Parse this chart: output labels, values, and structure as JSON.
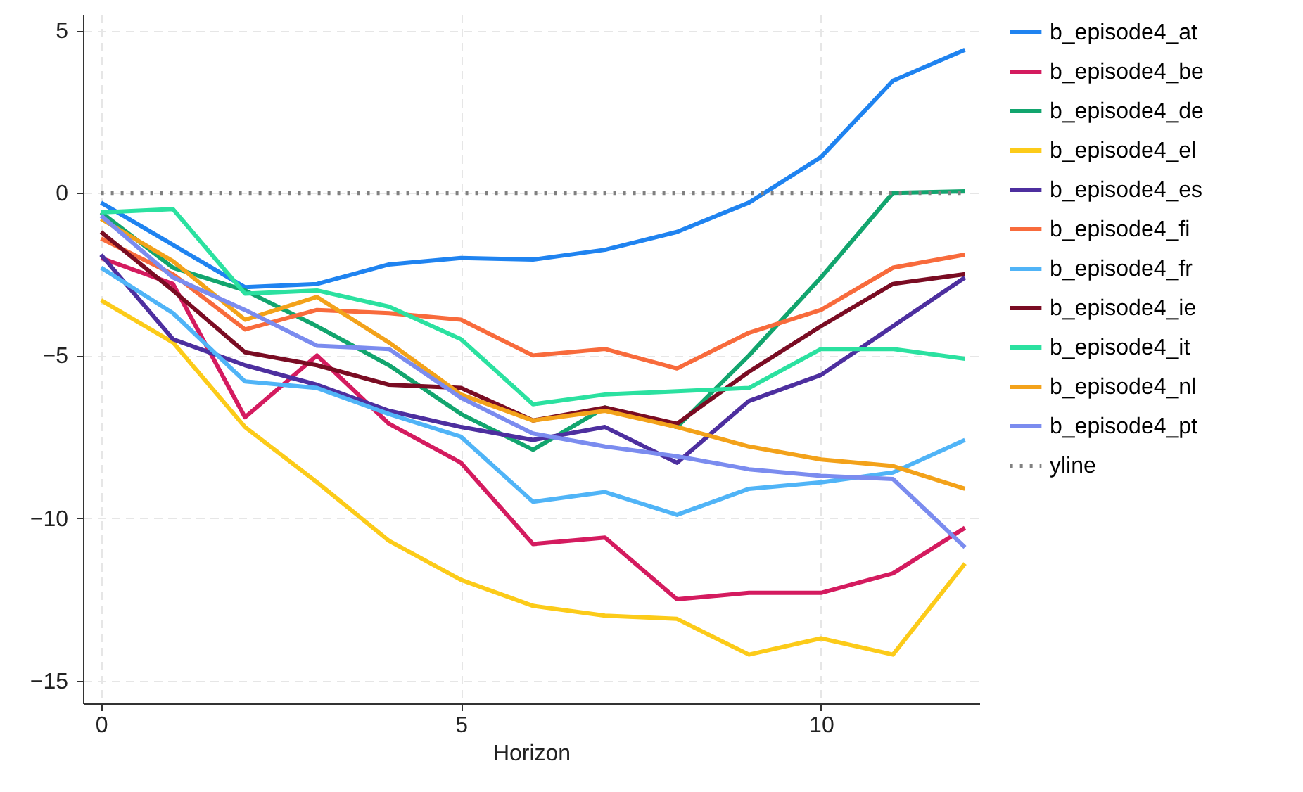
{
  "chart_data": {
    "type": "line",
    "xlabel": "Horizon",
    "x": [
      0,
      1,
      2,
      3,
      4,
      5,
      6,
      7,
      8,
      9,
      10,
      11,
      12
    ],
    "xlim": [
      -0.25,
      12.2
    ],
    "xticks": [
      0,
      5,
      10
    ],
    "ylim": [
      -15.7,
      5.5
    ],
    "yticks": [
      -15,
      -10,
      -5,
      0,
      5
    ],
    "grid": true,
    "legend": "right",
    "line_style": "solid",
    "series": [
      {
        "name": "b_episode4_at",
        "color": "#1f83f0",
        "values": [
          -0.3,
          -1.6,
          -2.9,
          -2.8,
          -2.2,
          -2.0,
          -2.05,
          -1.75,
          -1.2,
          -0.3,
          1.1,
          3.45,
          4.4
        ]
      },
      {
        "name": "b_episode4_be",
        "color": "#d41b5f",
        "values": [
          -2.0,
          -2.8,
          -6.9,
          -5.0,
          -7.1,
          -8.3,
          -10.8,
          -10.6,
          -12.5,
          -12.3,
          -12.3,
          -11.7,
          -10.3
        ]
      },
      {
        "name": "b_episode4_de",
        "color": "#12a56e",
        "values": [
          -0.6,
          -2.3,
          -3.0,
          -4.1,
          -5.3,
          -6.8,
          -7.9,
          -6.6,
          -7.2,
          -5.0,
          -2.6,
          0,
          0.05
        ]
      },
      {
        "name": "b_episode4_el",
        "color": "#fccb19",
        "values": [
          -3.3,
          -4.6,
          -7.2,
          -8.9,
          -10.7,
          -11.9,
          -12.7,
          -13.0,
          -13.1,
          -14.2,
          -13.7,
          -14.2,
          -11.4
        ]
      },
      {
        "name": "b_episode4_es",
        "color": "#4d2f9f",
        "values": [
          -1.9,
          -4.5,
          -5.3,
          -5.9,
          -6.7,
          -7.2,
          -7.6,
          -7.2,
          -8.3,
          -6.4,
          -5.6,
          -4.1,
          -2.6
        ]
      },
      {
        "name": "b_episode4_fi",
        "color": "#f86b3c",
        "values": [
          -1.4,
          -2.5,
          -4.2,
          -3.6,
          -3.7,
          -3.9,
          -5.0,
          -4.8,
          -5.4,
          -4.3,
          -3.6,
          -2.3,
          -1.9
        ]
      },
      {
        "name": "b_episode4_fr",
        "color": "#50b4f7",
        "values": [
          -2.3,
          -3.7,
          -5.8,
          -6.0,
          -6.8,
          -7.5,
          -9.5,
          -9.2,
          -9.9,
          -9.1,
          -8.9,
          -8.6,
          -7.6
        ]
      },
      {
        "name": "b_episode4_ie",
        "color": "#7a0c23",
        "values": [
          -1.2,
          -3.0,
          -4.9,
          -5.3,
          -5.9,
          -6.0,
          -7.0,
          -6.6,
          -7.1,
          -5.5,
          -4.1,
          -2.8,
          -2.5
        ]
      },
      {
        "name": "b_episode4_it",
        "color": "#2be1a0",
        "values": [
          -0.6,
          -0.5,
          -3.1,
          -3.0,
          -3.5,
          -4.5,
          -6.5,
          -6.2,
          -6.1,
          -6.0,
          -4.8,
          -4.8,
          -5.1
        ]
      },
      {
        "name": "b_episode4_nl",
        "color": "#f3a21a",
        "values": [
          -0.8,
          -2.1,
          -3.9,
          -3.2,
          -4.6,
          -6.2,
          -7.0,
          -6.7,
          -7.2,
          -7.8,
          -8.2,
          -8.4,
          -9.1
        ]
      },
      {
        "name": "b_episode4_pt",
        "color": "#7b8cef",
        "values": [
          -0.7,
          -2.6,
          -3.6,
          -4.7,
          -4.8,
          -6.3,
          -7.4,
          -7.8,
          -8.1,
          -8.5,
          -8.7,
          -8.8,
          -10.9
        ]
      },
      {
        "name": "yline",
        "color": "#808080",
        "line_style": "dotted",
        "values": [
          0,
          0,
          0,
          0,
          0,
          0,
          0,
          0,
          0,
          0,
          0,
          0,
          0
        ]
      }
    ]
  }
}
